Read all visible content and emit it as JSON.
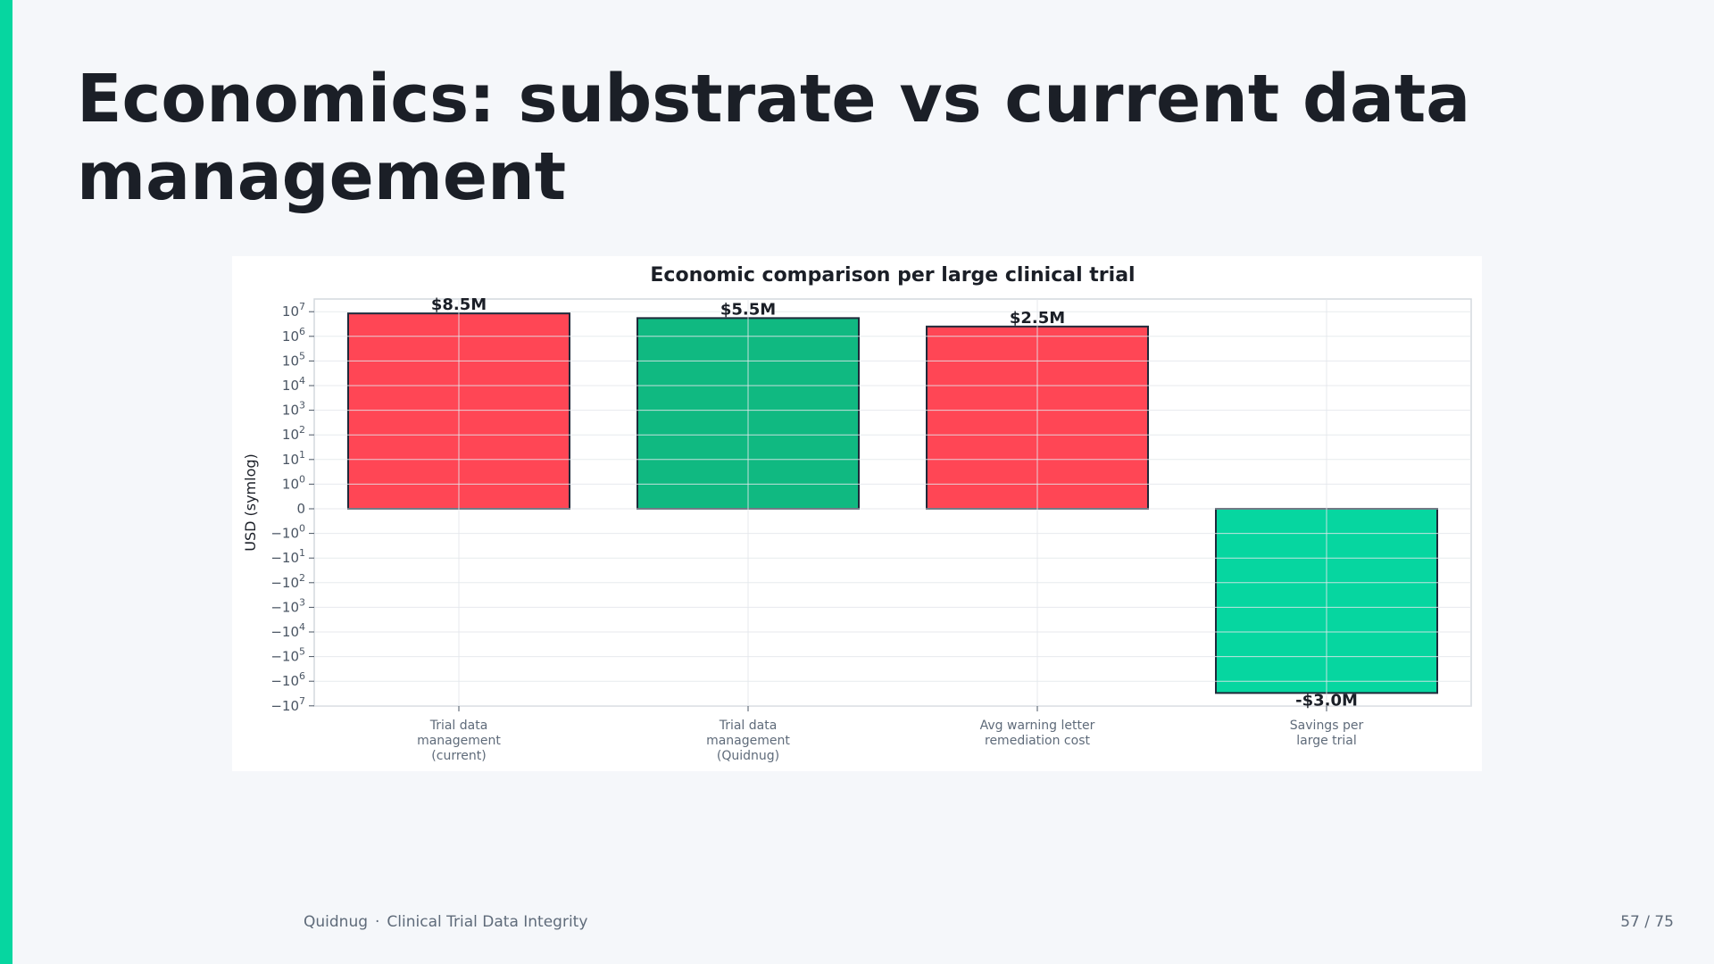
{
  "slide": {
    "title": "Economics: substrate vs current data management",
    "accent_color": "#06d6a0",
    "background_color": "#f5f7fa"
  },
  "footer": {
    "brand": "Quidnug",
    "separator": "·",
    "subtitle": "Clinical Trial Data Integrity",
    "page": "57 / 75"
  },
  "chart_data": {
    "type": "bar",
    "title": "Economic comparison per large clinical trial",
    "ylabel": "USD (symlog)",
    "xlabel": "",
    "yscale": "symlog",
    "ylim": [
      -10000000,
      10000000
    ],
    "grid": true,
    "categories": [
      [
        "Trial data",
        "management",
        "(current)"
      ],
      [
        "Trial data",
        "management",
        "(Quidnug)"
      ],
      [
        "Avg warning letter",
        "remediation cost"
      ],
      [
        "Savings per",
        "large trial"
      ]
    ],
    "values": [
      8500000,
      5500000,
      2500000,
      -3000000
    ],
    "value_labels": [
      "$8.5M",
      "$5.5M",
      "$2.5M",
      "-$3.0M"
    ],
    "colors": [
      "#ff4655",
      "#10b981",
      "#ff4655",
      "#06d6a0"
    ],
    "y_ticks": [
      {
        "value": 10000000,
        "base": "10",
        "exp": "7"
      },
      {
        "value": 1000000,
        "base": "10",
        "exp": "6"
      },
      {
        "value": 100000,
        "base": "10",
        "exp": "5"
      },
      {
        "value": 10000,
        "base": "10",
        "exp": "4"
      },
      {
        "value": 1000,
        "base": "10",
        "exp": "3"
      },
      {
        "value": 100,
        "base": "10",
        "exp": "2"
      },
      {
        "value": 10,
        "base": "10",
        "exp": "1"
      },
      {
        "value": 1,
        "base": "10",
        "exp": "0"
      },
      {
        "value": 0,
        "base": "0",
        "exp": ""
      },
      {
        "value": -1,
        "base": "−10",
        "exp": "0"
      },
      {
        "value": -10,
        "base": "−10",
        "exp": "1"
      },
      {
        "value": -100,
        "base": "−10",
        "exp": "2"
      },
      {
        "value": -1000,
        "base": "−10",
        "exp": "3"
      },
      {
        "value": -10000,
        "base": "−10",
        "exp": "4"
      },
      {
        "value": -100000,
        "base": "−10",
        "exp": "5"
      },
      {
        "value": -1000000,
        "base": "−10",
        "exp": "6"
      },
      {
        "value": -10000000,
        "base": "−10",
        "exp": "7"
      }
    ]
  }
}
